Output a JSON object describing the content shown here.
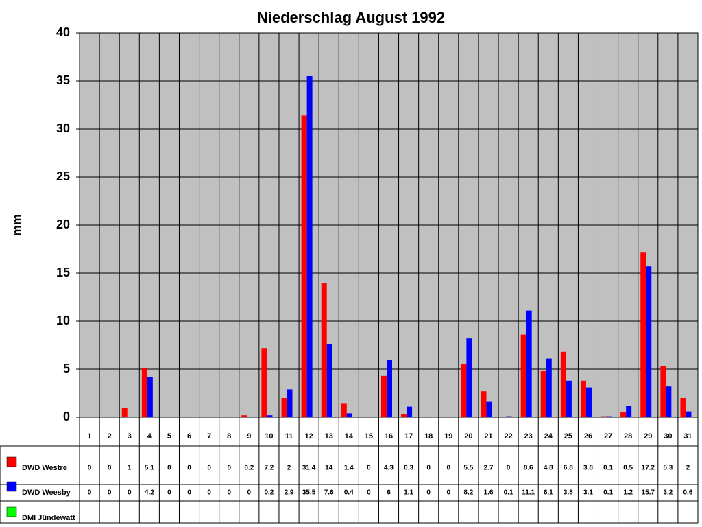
{
  "chart_data": {
    "type": "bar",
    "title": "Niederschlag August 1992",
    "y_label": "mm",
    "categories": [
      "1",
      "2",
      "3",
      "4",
      "5",
      "6",
      "7",
      "8",
      "9",
      "10",
      "11",
      "12",
      "13",
      "14",
      "15",
      "16",
      "17",
      "18",
      "19",
      "20",
      "21",
      "22",
      "23",
      "24",
      "25",
      "26",
      "27",
      "28",
      "29",
      "30",
      "31"
    ],
    "series": [
      {
        "name": "DWD Westre",
        "color": "#ff0000",
        "values": [
          0,
          0,
          1,
          5.1,
          0,
          0,
          0,
          0,
          0.2,
          7.2,
          2,
          31.4,
          14,
          1.4,
          0,
          4.3,
          0.3,
          0,
          0,
          5.5,
          2.7,
          0,
          8.6,
          4.8,
          6.8,
          3.8,
          0.1,
          0.5,
          17.2,
          5.3,
          2
        ]
      },
      {
        "name": "DWD Weesby",
        "color": "#0000ff",
        "values": [
          0,
          0,
          0,
          4.2,
          0,
          0,
          0,
          0,
          0,
          0.2,
          2.9,
          35.5,
          7.6,
          0.4,
          0,
          6,
          1.1,
          0,
          0,
          8.2,
          1.6,
          0.1,
          11.1,
          6.1,
          3.8,
          3.1,
          0.1,
          1.2,
          15.7,
          3.2,
          0.6
        ]
      },
      {
        "name": "DMI Jündewatt",
        "color": "#00ff00",
        "values": [
          null,
          null,
          null,
          null,
          null,
          null,
          null,
          null,
          null,
          null,
          null,
          null,
          null,
          null,
          null,
          null,
          null,
          null,
          null,
          null,
          null,
          null,
          null,
          null,
          null,
          null,
          null,
          null,
          null,
          null,
          null
        ]
      }
    ],
    "ylim": [
      0,
      40
    ],
    "yticks": [
      0,
      5,
      10,
      15,
      20,
      25,
      30,
      35,
      40
    ],
    "grid": true,
    "plot_background": "#c0c0c0"
  }
}
